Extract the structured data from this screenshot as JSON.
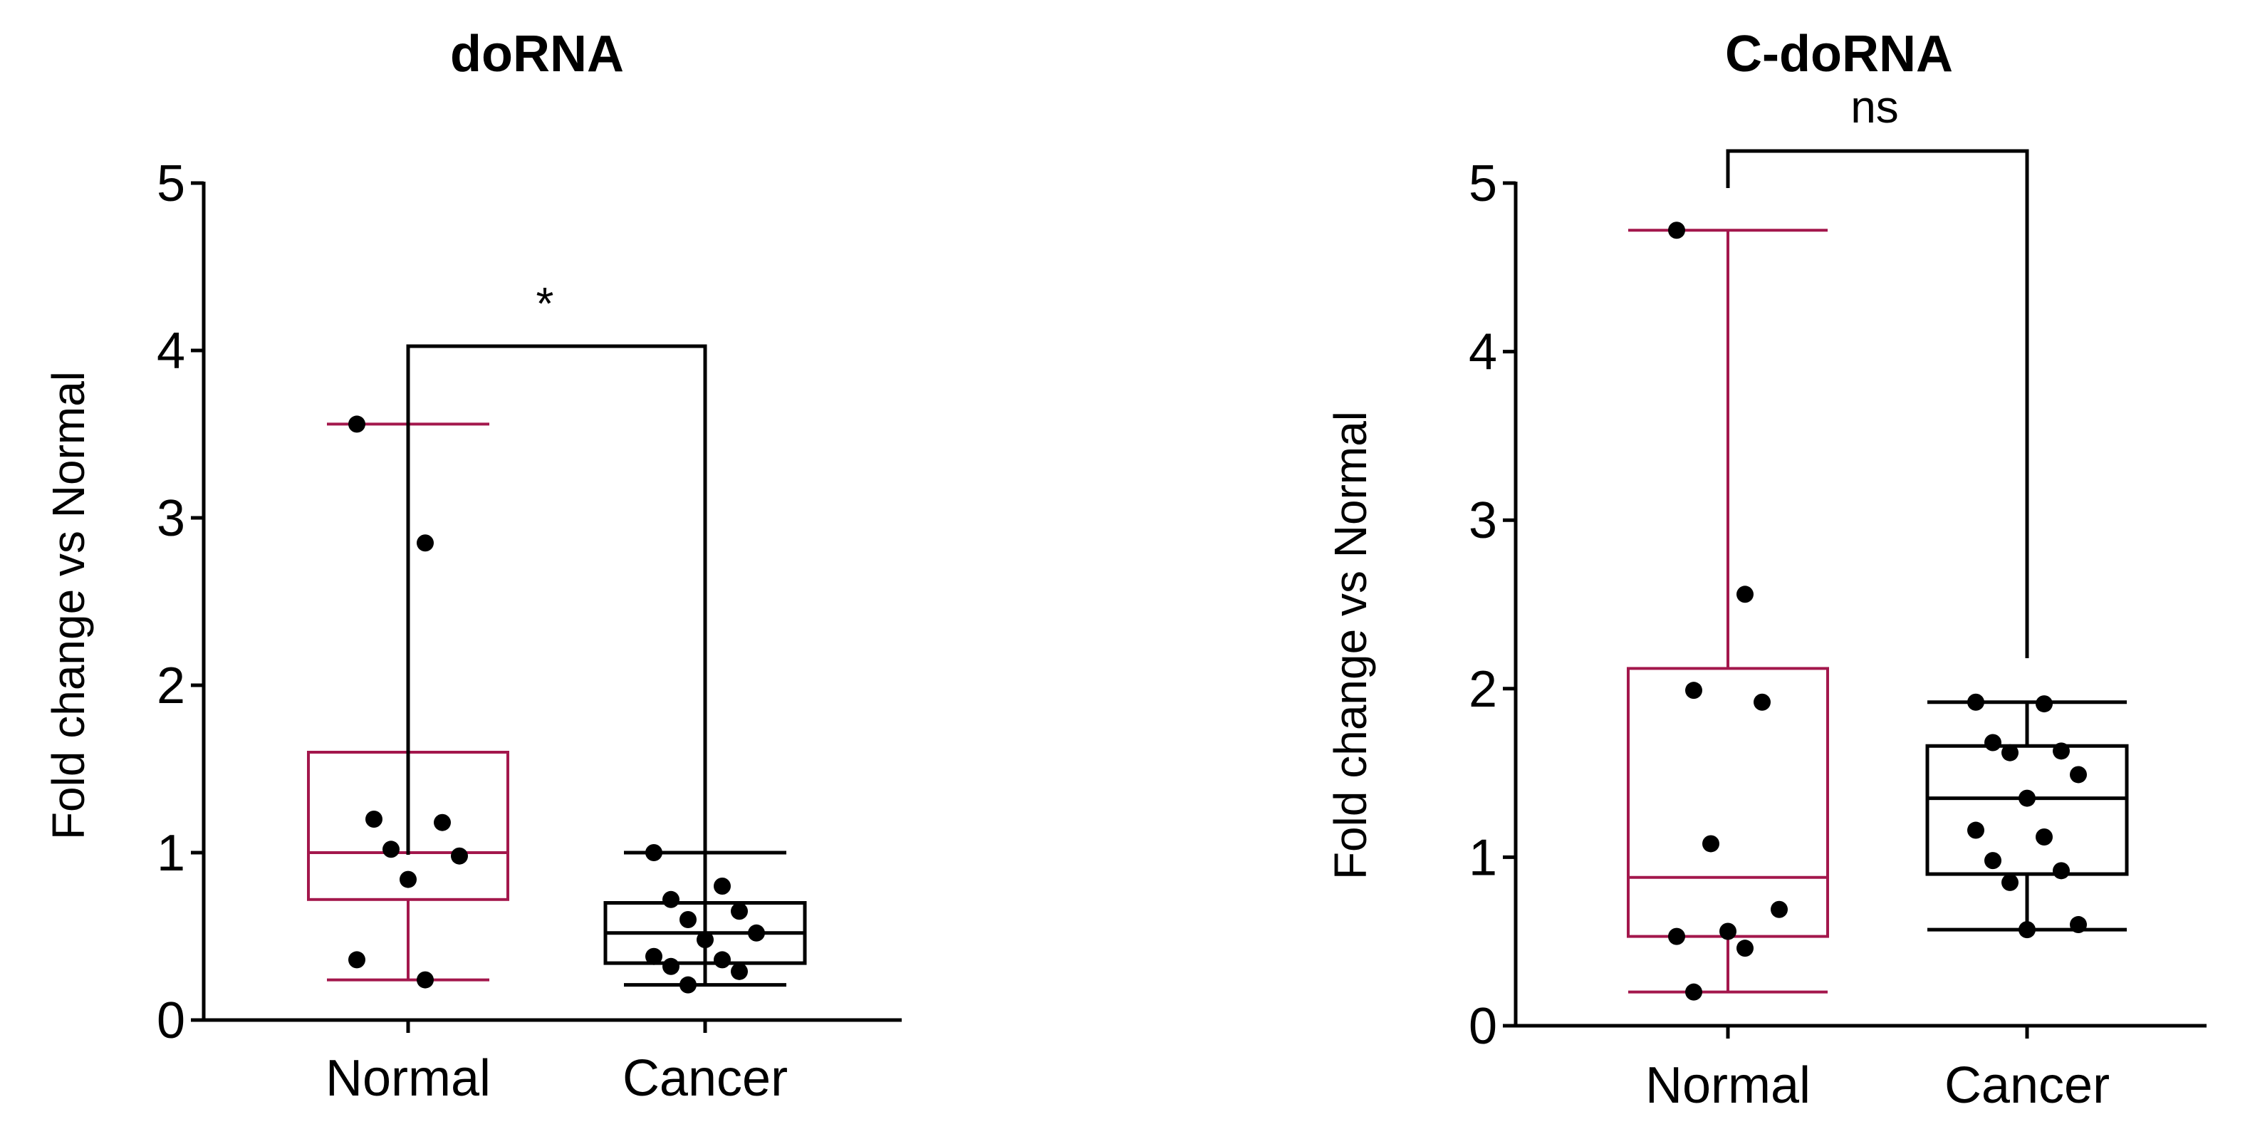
{
  "chart_data": [
    {
      "type": "box",
      "title": "doRNA",
      "ylabel": "Fold change vs Normal",
      "xlabel": "",
      "ylim": [
        0,
        5
      ],
      "yticks": [
        "0",
        "1",
        "2",
        "3",
        "4",
        "5"
      ],
      "categories": [
        "Normal",
        "Cancer"
      ],
      "significance": "*",
      "groups": [
        {
          "name": "Normal",
          "color": "#a3174c",
          "min": 0.24,
          "q1": 0.72,
          "median": 1.0,
          "q3": 1.6,
          "max": 3.56,
          "points": [
            3.56,
            2.85,
            1.2,
            1.18,
            1.02,
            0.98,
            0.84,
            0.36,
            0.24
          ]
        },
        {
          "name": "Cancer",
          "color": "#000000",
          "min": 0.21,
          "q1": 0.34,
          "median": 0.52,
          "q3": 0.7,
          "max": 1.0,
          "points": [
            1.0,
            0.8,
            0.72,
            0.65,
            0.6,
            0.52,
            0.48,
            0.38,
            0.36,
            0.32,
            0.29,
            0.21
          ]
        }
      ]
    },
    {
      "type": "box",
      "title": "C-doRNA",
      "ylabel": "Fold change vs Normal",
      "xlabel": "",
      "ylim": [
        0,
        5
      ],
      "yticks": [
        "0",
        "1",
        "2",
        "3",
        "4",
        "5"
      ],
      "categories": [
        "Normal",
        "Cancer"
      ],
      "significance": "ns",
      "groups": [
        {
          "name": "Normal",
          "color": "#a3174c",
          "min": 0.2,
          "q1": 0.53,
          "median": 0.88,
          "q3": 2.12,
          "max": 4.72,
          "points": [
            4.72,
            2.56,
            1.99,
            1.92,
            1.08,
            0.69,
            0.56,
            0.53,
            0.46,
            0.2
          ]
        },
        {
          "name": "Cancer",
          "color": "#000000",
          "min": 0.57,
          "q1": 0.9,
          "median": 1.35,
          "q3": 1.66,
          "max": 1.92,
          "points": [
            1.92,
            1.91,
            1.68,
            1.63,
            1.62,
            1.49,
            1.35,
            1.16,
            1.12,
            0.98,
            0.92,
            0.85,
            0.6,
            0.57
          ]
        }
      ]
    }
  ]
}
